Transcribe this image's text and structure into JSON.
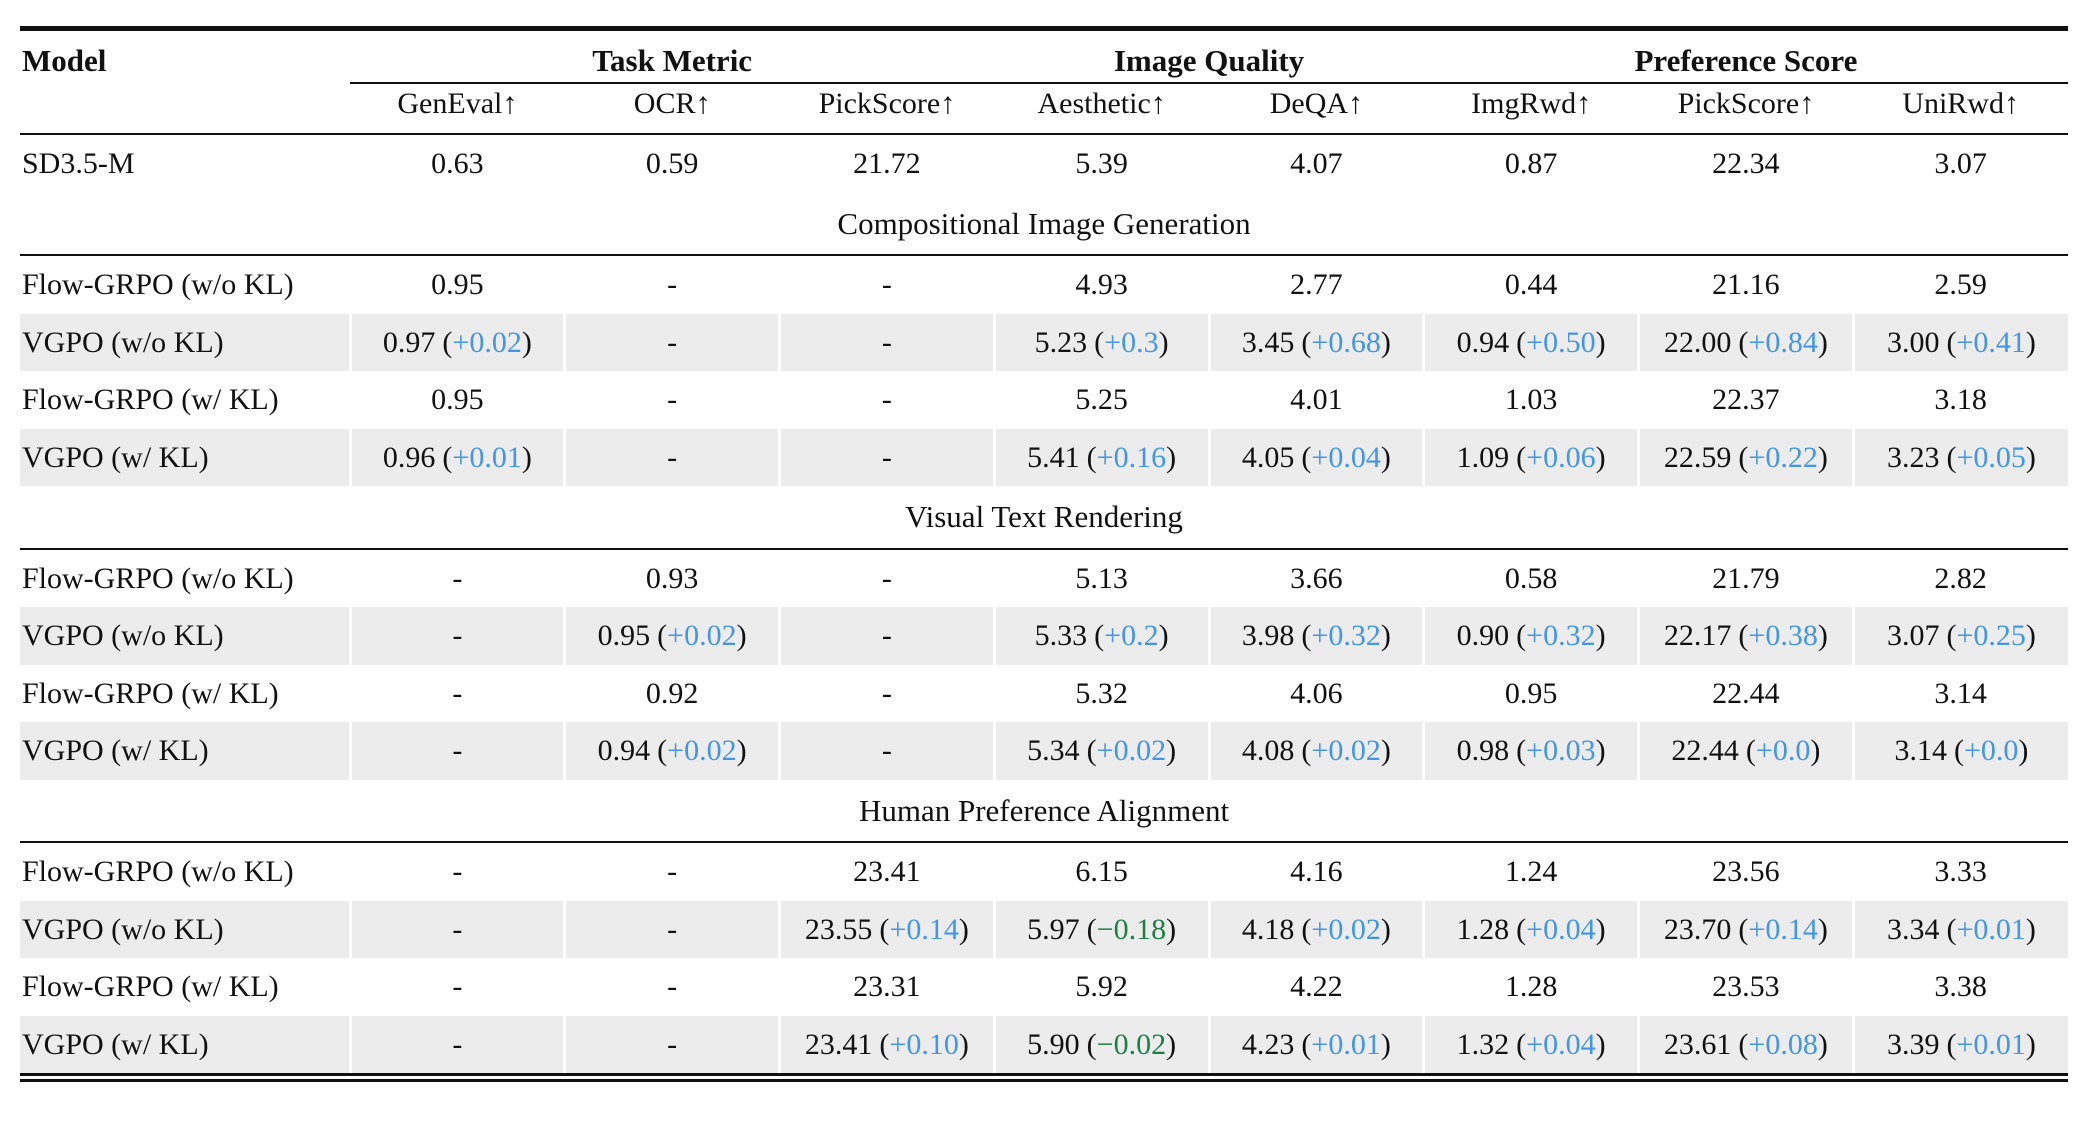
{
  "colors": {
    "delta_positive": "#4496e4",
    "delta_negative": "#1e8045",
    "row_highlight": "#ececec",
    "rule": "#111111"
  },
  "table": {
    "header_groups": [
      {
        "label": "Model",
        "colspan": 1,
        "is_model": true
      },
      {
        "label": "Task Metric",
        "colspan": 3
      },
      {
        "label": "Image Quality",
        "colspan": 2
      },
      {
        "label": "Preference Score",
        "colspan": 3
      }
    ],
    "columns": [
      "GenEval↑",
      "OCR↑",
      "PickScore↑",
      "Aesthetic↑",
      "DeQA↑",
      "ImgRwd↑",
      "PickScore↑",
      "UniRwd↑"
    ],
    "sections": [
      {
        "title": "",
        "rows": [
          {
            "model": "SD3.5-M",
            "highlight": false,
            "cells": [
              {
                "v": "0.63"
              },
              {
                "v": "0.59"
              },
              {
                "v": "21.72"
              },
              {
                "v": "5.39"
              },
              {
                "v": "4.07"
              },
              {
                "v": "0.87"
              },
              {
                "v": "22.34"
              },
              {
                "v": "3.07"
              }
            ]
          }
        ]
      },
      {
        "title": "Compositional Image Generation",
        "rows": [
          {
            "model": "Flow-GRPO (w/o KL)",
            "highlight": false,
            "cells": [
              {
                "v": "0.95"
              },
              {
                "v": "-"
              },
              {
                "v": "-"
              },
              {
                "v": "4.93"
              },
              {
                "v": "2.77"
              },
              {
                "v": "0.44"
              },
              {
                "v": "21.16"
              },
              {
                "v": "2.59"
              }
            ]
          },
          {
            "model": "VGPO (w/o KL)",
            "highlight": true,
            "cells": [
              {
                "v": "0.97",
                "d": "+0.02"
              },
              {
                "v": "-"
              },
              {
                "v": "-"
              },
              {
                "v": "5.23",
                "d": "+0.3"
              },
              {
                "v": "3.45",
                "d": "+0.68"
              },
              {
                "v": "0.94",
                "d": "+0.50"
              },
              {
                "v": "22.00",
                "d": "+0.84"
              },
              {
                "v": "3.00",
                "d": "+0.41"
              }
            ]
          },
          {
            "model": "Flow-GRPO (w/ KL)",
            "highlight": false,
            "cells": [
              {
                "v": "0.95"
              },
              {
                "v": "-"
              },
              {
                "v": "-"
              },
              {
                "v": "5.25"
              },
              {
                "v": "4.01"
              },
              {
                "v": "1.03"
              },
              {
                "v": "22.37"
              },
              {
                "v": "3.18"
              }
            ]
          },
          {
            "model": "VGPO (w/ KL)",
            "highlight": true,
            "cells": [
              {
                "v": "0.96",
                "d": "+0.01"
              },
              {
                "v": "-"
              },
              {
                "v": "-"
              },
              {
                "v": "5.41",
                "d": "+0.16"
              },
              {
                "v": "4.05",
                "d": "+0.04"
              },
              {
                "v": "1.09",
                "d": "+0.06"
              },
              {
                "v": "22.59",
                "d": "+0.22"
              },
              {
                "v": "3.23",
                "d": "+0.05"
              }
            ]
          }
        ]
      },
      {
        "title": "Visual Text Rendering",
        "rows": [
          {
            "model": "Flow-GRPO (w/o KL)",
            "highlight": false,
            "cells": [
              {
                "v": "-"
              },
              {
                "v": "0.93"
              },
              {
                "v": "-"
              },
              {
                "v": "5.13"
              },
              {
                "v": "3.66"
              },
              {
                "v": "0.58"
              },
              {
                "v": "21.79"
              },
              {
                "v": "2.82"
              }
            ]
          },
          {
            "model": "VGPO (w/o KL)",
            "highlight": true,
            "cells": [
              {
                "v": "-"
              },
              {
                "v": "0.95",
                "d": "+0.02"
              },
              {
                "v": "-"
              },
              {
                "v": "5.33",
                "d": "+0.2"
              },
              {
                "v": "3.98",
                "d": "+0.32"
              },
              {
                "v": "0.90",
                "d": "+0.32"
              },
              {
                "v": "22.17",
                "d": "+0.38"
              },
              {
                "v": "3.07",
                "d": "+0.25"
              }
            ]
          },
          {
            "model": "Flow-GRPO (w/ KL)",
            "highlight": false,
            "cells": [
              {
                "v": "-"
              },
              {
                "v": "0.92"
              },
              {
                "v": "-"
              },
              {
                "v": "5.32"
              },
              {
                "v": "4.06"
              },
              {
                "v": "0.95"
              },
              {
                "v": "22.44"
              },
              {
                "v": "3.14"
              }
            ]
          },
          {
            "model": "VGPO (w/ KL)",
            "highlight": true,
            "cells": [
              {
                "v": "-"
              },
              {
                "v": "0.94",
                "d": "+0.02"
              },
              {
                "v": "-"
              },
              {
                "v": "5.34",
                "d": "+0.02"
              },
              {
                "v": "4.08",
                "d": "+0.02"
              },
              {
                "v": "0.98",
                "d": "+0.03"
              },
              {
                "v": "22.44",
                "d": "+0.0"
              },
              {
                "v": "3.14",
                "d": "+0.0"
              }
            ]
          }
        ]
      },
      {
        "title": "Human Preference Alignment",
        "rows": [
          {
            "model": "Flow-GRPO (w/o KL)",
            "highlight": false,
            "cells": [
              {
                "v": "-"
              },
              {
                "v": "-"
              },
              {
                "v": "23.41"
              },
              {
                "v": "6.15"
              },
              {
                "v": "4.16"
              },
              {
                "v": "1.24"
              },
              {
                "v": "23.56"
              },
              {
                "v": "3.33"
              }
            ]
          },
          {
            "model": "VGPO (w/o KL)",
            "highlight": true,
            "cells": [
              {
                "v": "-"
              },
              {
                "v": "-"
              },
              {
                "v": "23.55",
                "d": "+0.14"
              },
              {
                "v": "5.97",
                "d": "−0.18"
              },
              {
                "v": "4.18",
                "d": "+0.02"
              },
              {
                "v": "1.28",
                "d": "+0.04"
              },
              {
                "v": "23.70",
                "d": "+0.14"
              },
              {
                "v": "3.34",
                "d": "+0.01"
              }
            ]
          },
          {
            "model": "Flow-GRPO (w/ KL)",
            "highlight": false,
            "cells": [
              {
                "v": "-"
              },
              {
                "v": "-"
              },
              {
                "v": "23.31"
              },
              {
                "v": "5.92"
              },
              {
                "v": "4.22"
              },
              {
                "v": "1.28"
              },
              {
                "v": "23.53"
              },
              {
                "v": "3.38"
              }
            ]
          },
          {
            "model": "VGPO (w/ KL)",
            "highlight": true,
            "cells": [
              {
                "v": "-"
              },
              {
                "v": "-"
              },
              {
                "v": "23.41",
                "d": "+0.10"
              },
              {
                "v": "5.90",
                "d": "−0.02"
              },
              {
                "v": "4.23",
                "d": "+0.01"
              },
              {
                "v": "1.32",
                "d": "+0.04"
              },
              {
                "v": "23.61",
                "d": "+0.08"
              },
              {
                "v": "3.39",
                "d": "+0.01"
              }
            ]
          }
        ]
      }
    ]
  }
}
